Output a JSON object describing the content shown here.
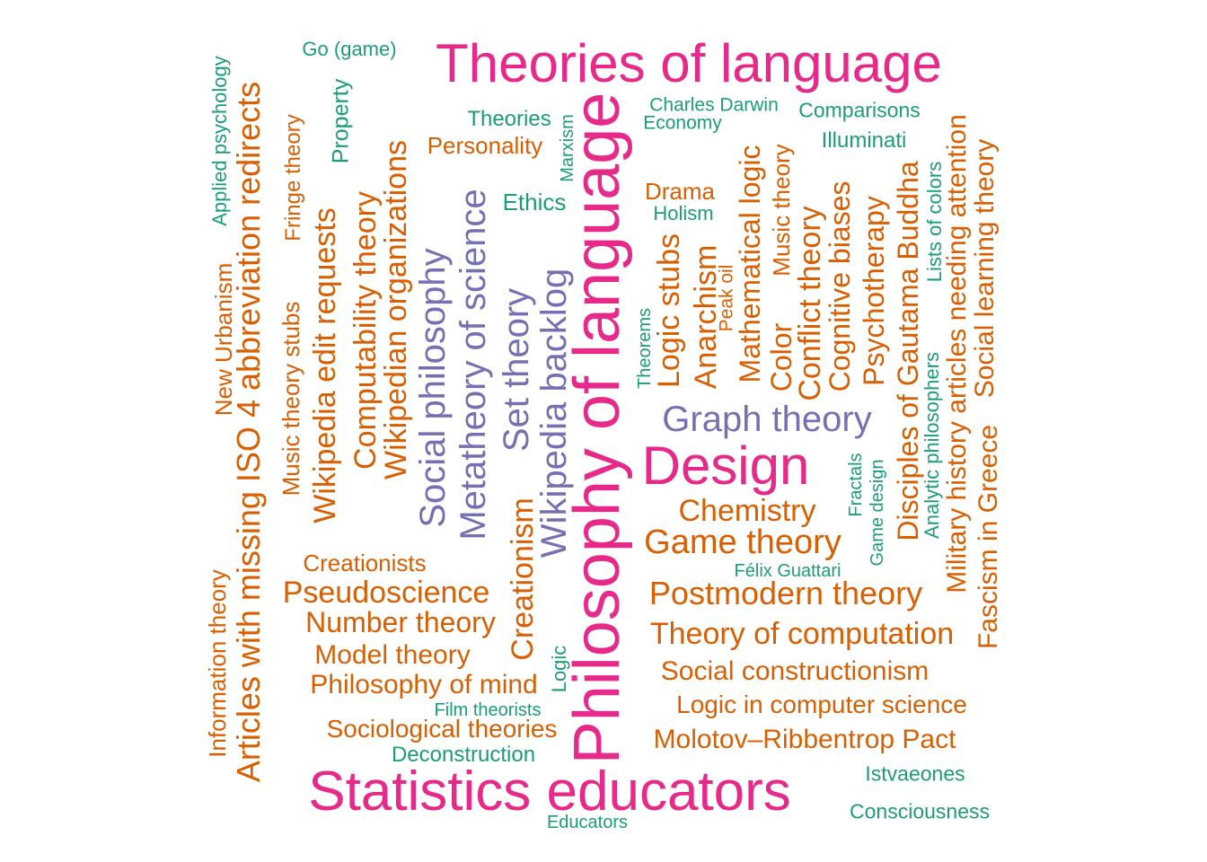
{
  "colors": {
    "pink": "#e7298a",
    "purple": "#7570b3",
    "orange": "#d95f02",
    "green": "#1b9e77"
  },
  "words": [
    {
      "text": "Theories of language",
      "color": "pink"
    },
    {
      "text": "Philosophy of language",
      "color": "pink"
    },
    {
      "text": "Design",
      "color": "pink"
    },
    {
      "text": "Statistics educators",
      "color": "pink"
    },
    {
      "text": "Graph theory",
      "color": "purple"
    },
    {
      "text": "Wikipedia backlog",
      "color": "purple"
    },
    {
      "text": "Set theory",
      "color": "purple"
    },
    {
      "text": "Metatheory of science",
      "color": "purple"
    },
    {
      "text": "Social philosophy",
      "color": "purple"
    },
    {
      "text": "Go (game)",
      "color": "green"
    },
    {
      "text": "Applied psychology",
      "color": "green"
    },
    {
      "text": "Property",
      "color": "green"
    },
    {
      "text": "Theories",
      "color": "green"
    },
    {
      "text": "Marxism",
      "color": "green"
    },
    {
      "text": "Charles Darwin",
      "color": "green"
    },
    {
      "text": "Economy",
      "color": "green"
    },
    {
      "text": "Comparisons",
      "color": "green"
    },
    {
      "text": "Illuminati",
      "color": "green"
    },
    {
      "text": "Ethics",
      "color": "green"
    },
    {
      "text": "Holism",
      "color": "green"
    },
    {
      "text": "Theorems",
      "color": "green"
    },
    {
      "text": "Lists of colors",
      "color": "green"
    },
    {
      "text": "Analytic philosophers",
      "color": "green"
    },
    {
      "text": "Fractals",
      "color": "green"
    },
    {
      "text": "Game design",
      "color": "green"
    },
    {
      "text": "Félix Guattari",
      "color": "green"
    },
    {
      "text": "Logic",
      "color": "green"
    },
    {
      "text": "Film theorists",
      "color": "green"
    },
    {
      "text": "Deconstruction",
      "color": "green"
    },
    {
      "text": "Istvaeones",
      "color": "green"
    },
    {
      "text": "Consciousness",
      "color": "green"
    },
    {
      "text": "Educators",
      "color": "green"
    },
    {
      "text": "Articles with missing ISO 4 abbreviation redirects",
      "color": "orange"
    },
    {
      "text": "Fringe theory",
      "color": "orange"
    },
    {
      "text": "Music theory stubs",
      "color": "orange"
    },
    {
      "text": "New Urbanism",
      "color": "orange"
    },
    {
      "text": "Information theory",
      "color": "orange"
    },
    {
      "text": "Wikipedia edit requests",
      "color": "orange"
    },
    {
      "text": "Computability theory",
      "color": "orange"
    },
    {
      "text": "Wikipedian organizations",
      "color": "orange"
    },
    {
      "text": "Personality",
      "color": "orange"
    },
    {
      "text": "Drama",
      "color": "orange"
    },
    {
      "text": "Logic stubs",
      "color": "orange"
    },
    {
      "text": "Anarchism",
      "color": "orange"
    },
    {
      "text": "Peak oil",
      "color": "orange"
    },
    {
      "text": "Mathematical logic",
      "color": "orange"
    },
    {
      "text": "Music theory",
      "color": "orange"
    },
    {
      "text": "Color",
      "color": "orange"
    },
    {
      "text": "Conflict theory",
      "color": "orange"
    },
    {
      "text": "Cognitive biases",
      "color": "orange"
    },
    {
      "text": "Psychotherapy",
      "color": "orange"
    },
    {
      "text": "Disciples of Gautama Buddha",
      "color": "orange"
    },
    {
      "text": "Military history articles needing attention",
      "color": "orange"
    },
    {
      "text": "Social learning theory",
      "color": "orange"
    },
    {
      "text": "Fascism in Greece",
      "color": "orange"
    },
    {
      "text": "Chemistry",
      "color": "orange"
    },
    {
      "text": "Game theory",
      "color": "orange"
    },
    {
      "text": "Postmodern theory",
      "color": "orange"
    },
    {
      "text": "Theory of computation",
      "color": "orange"
    },
    {
      "text": "Social constructionism",
      "color": "orange"
    },
    {
      "text": "Logic in computer science",
      "color": "orange"
    },
    {
      "text": "Molotov–Ribbentrop Pact",
      "color": "orange"
    },
    {
      "text": "Creationists",
      "color": "orange"
    },
    {
      "text": "Pseudoscience",
      "color": "orange"
    },
    {
      "text": "Number theory",
      "color": "orange"
    },
    {
      "text": "Model theory",
      "color": "orange"
    },
    {
      "text": "Philosophy of mind",
      "color": "orange"
    },
    {
      "text": "Sociological theories",
      "color": "orange"
    },
    {
      "text": "Creationism",
      "color": "orange"
    }
  ]
}
